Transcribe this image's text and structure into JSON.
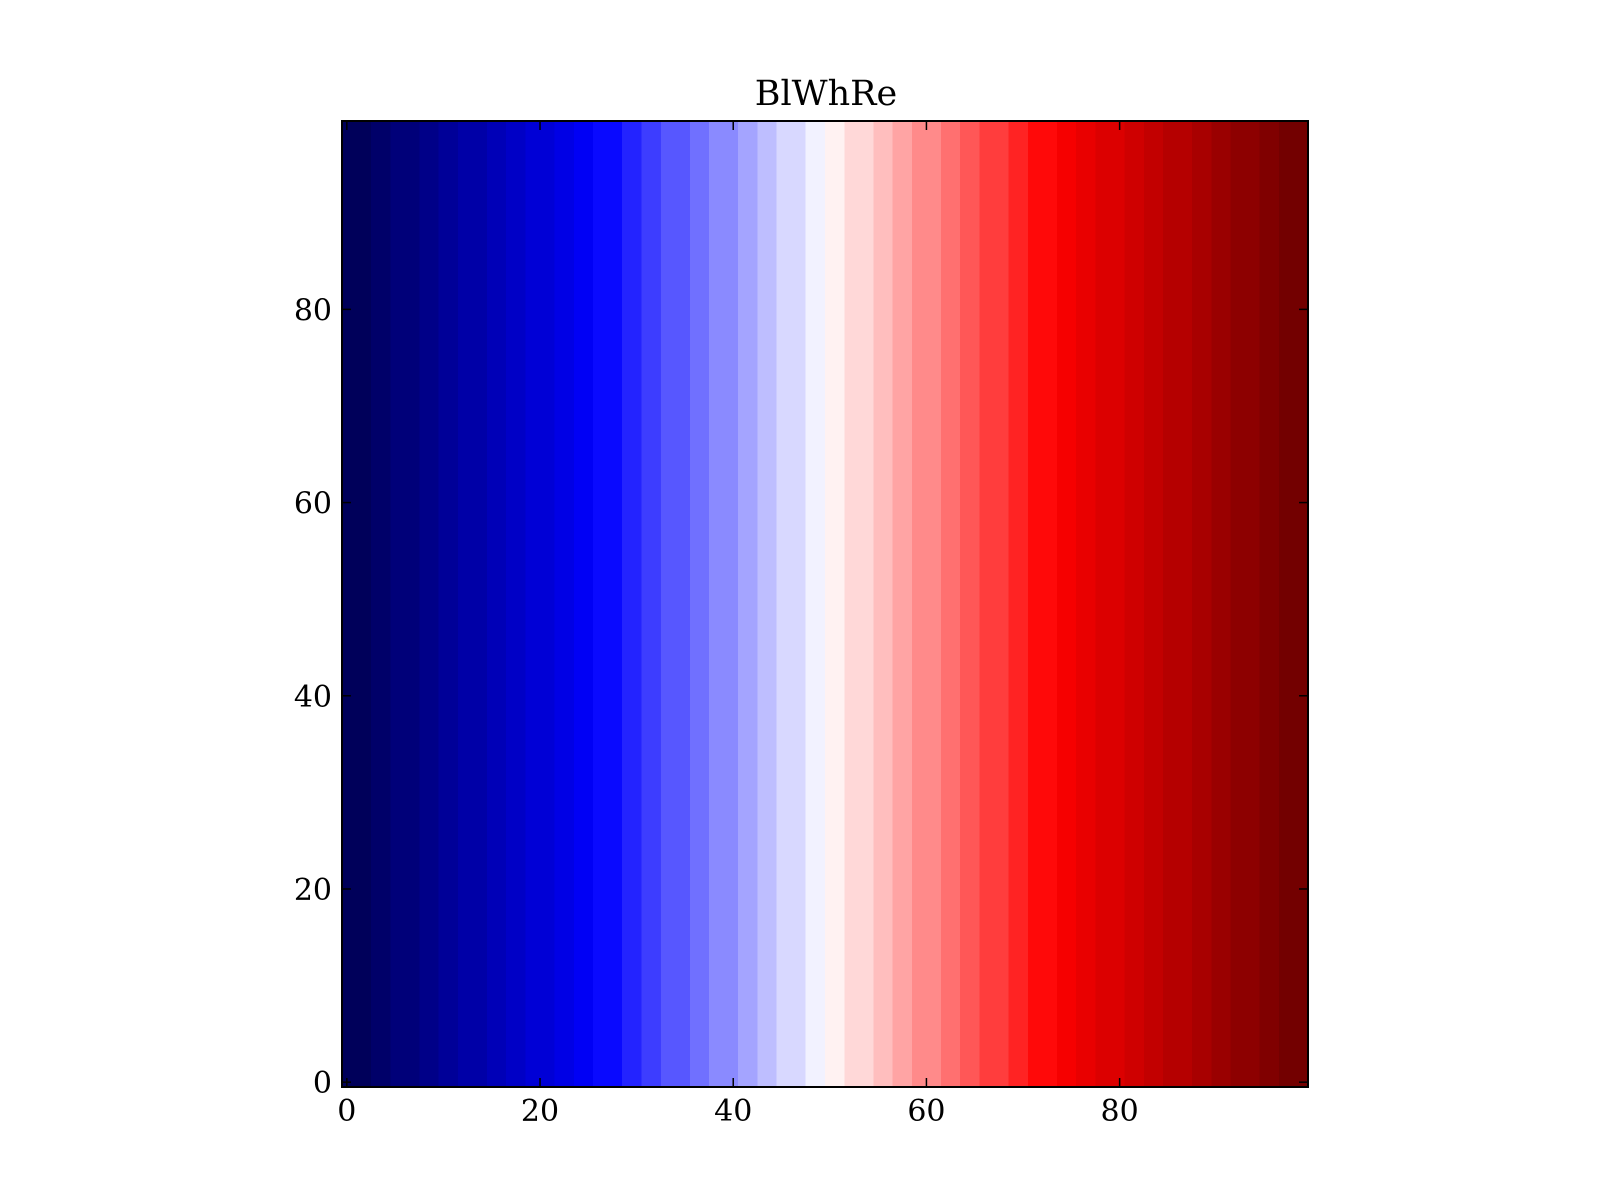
{
  "chart_data": {
    "type": "heatmap",
    "title": "BlWhRe",
    "xlabel": "",
    "ylabel": "",
    "colormap": "BlWhRe",
    "description_of_values": "value at column x equals x (constant along y), colored by BlWhRe colormap",
    "xlim": [
      -0.5,
      99.5
    ],
    "ylim": [
      -0.5,
      99.5
    ],
    "x_ticks": [
      0,
      20,
      40,
      60,
      80
    ],
    "x_tick_labels": [
      "0",
      "20",
      "40",
      "60",
      "80"
    ],
    "y_ticks": [
      0,
      20,
      40,
      60,
      80
    ],
    "y_tick_labels": [
      "0",
      "20",
      "40",
      "60",
      "80"
    ],
    "columns": 100,
    "rows": 100,
    "colormap_stops": [
      {
        "pos": 0.0,
        "color": "#00005a"
      },
      {
        "pos": 0.26,
        "color": "#0000ff"
      },
      {
        "pos": 0.5,
        "color": "#ffffff"
      },
      {
        "pos": 0.74,
        "color": "#ff0000"
      },
      {
        "pos": 1.0,
        "color": "#730000"
      }
    ],
    "colormap_levels": 42,
    "grid": false,
    "frame_color": "#000000"
  }
}
